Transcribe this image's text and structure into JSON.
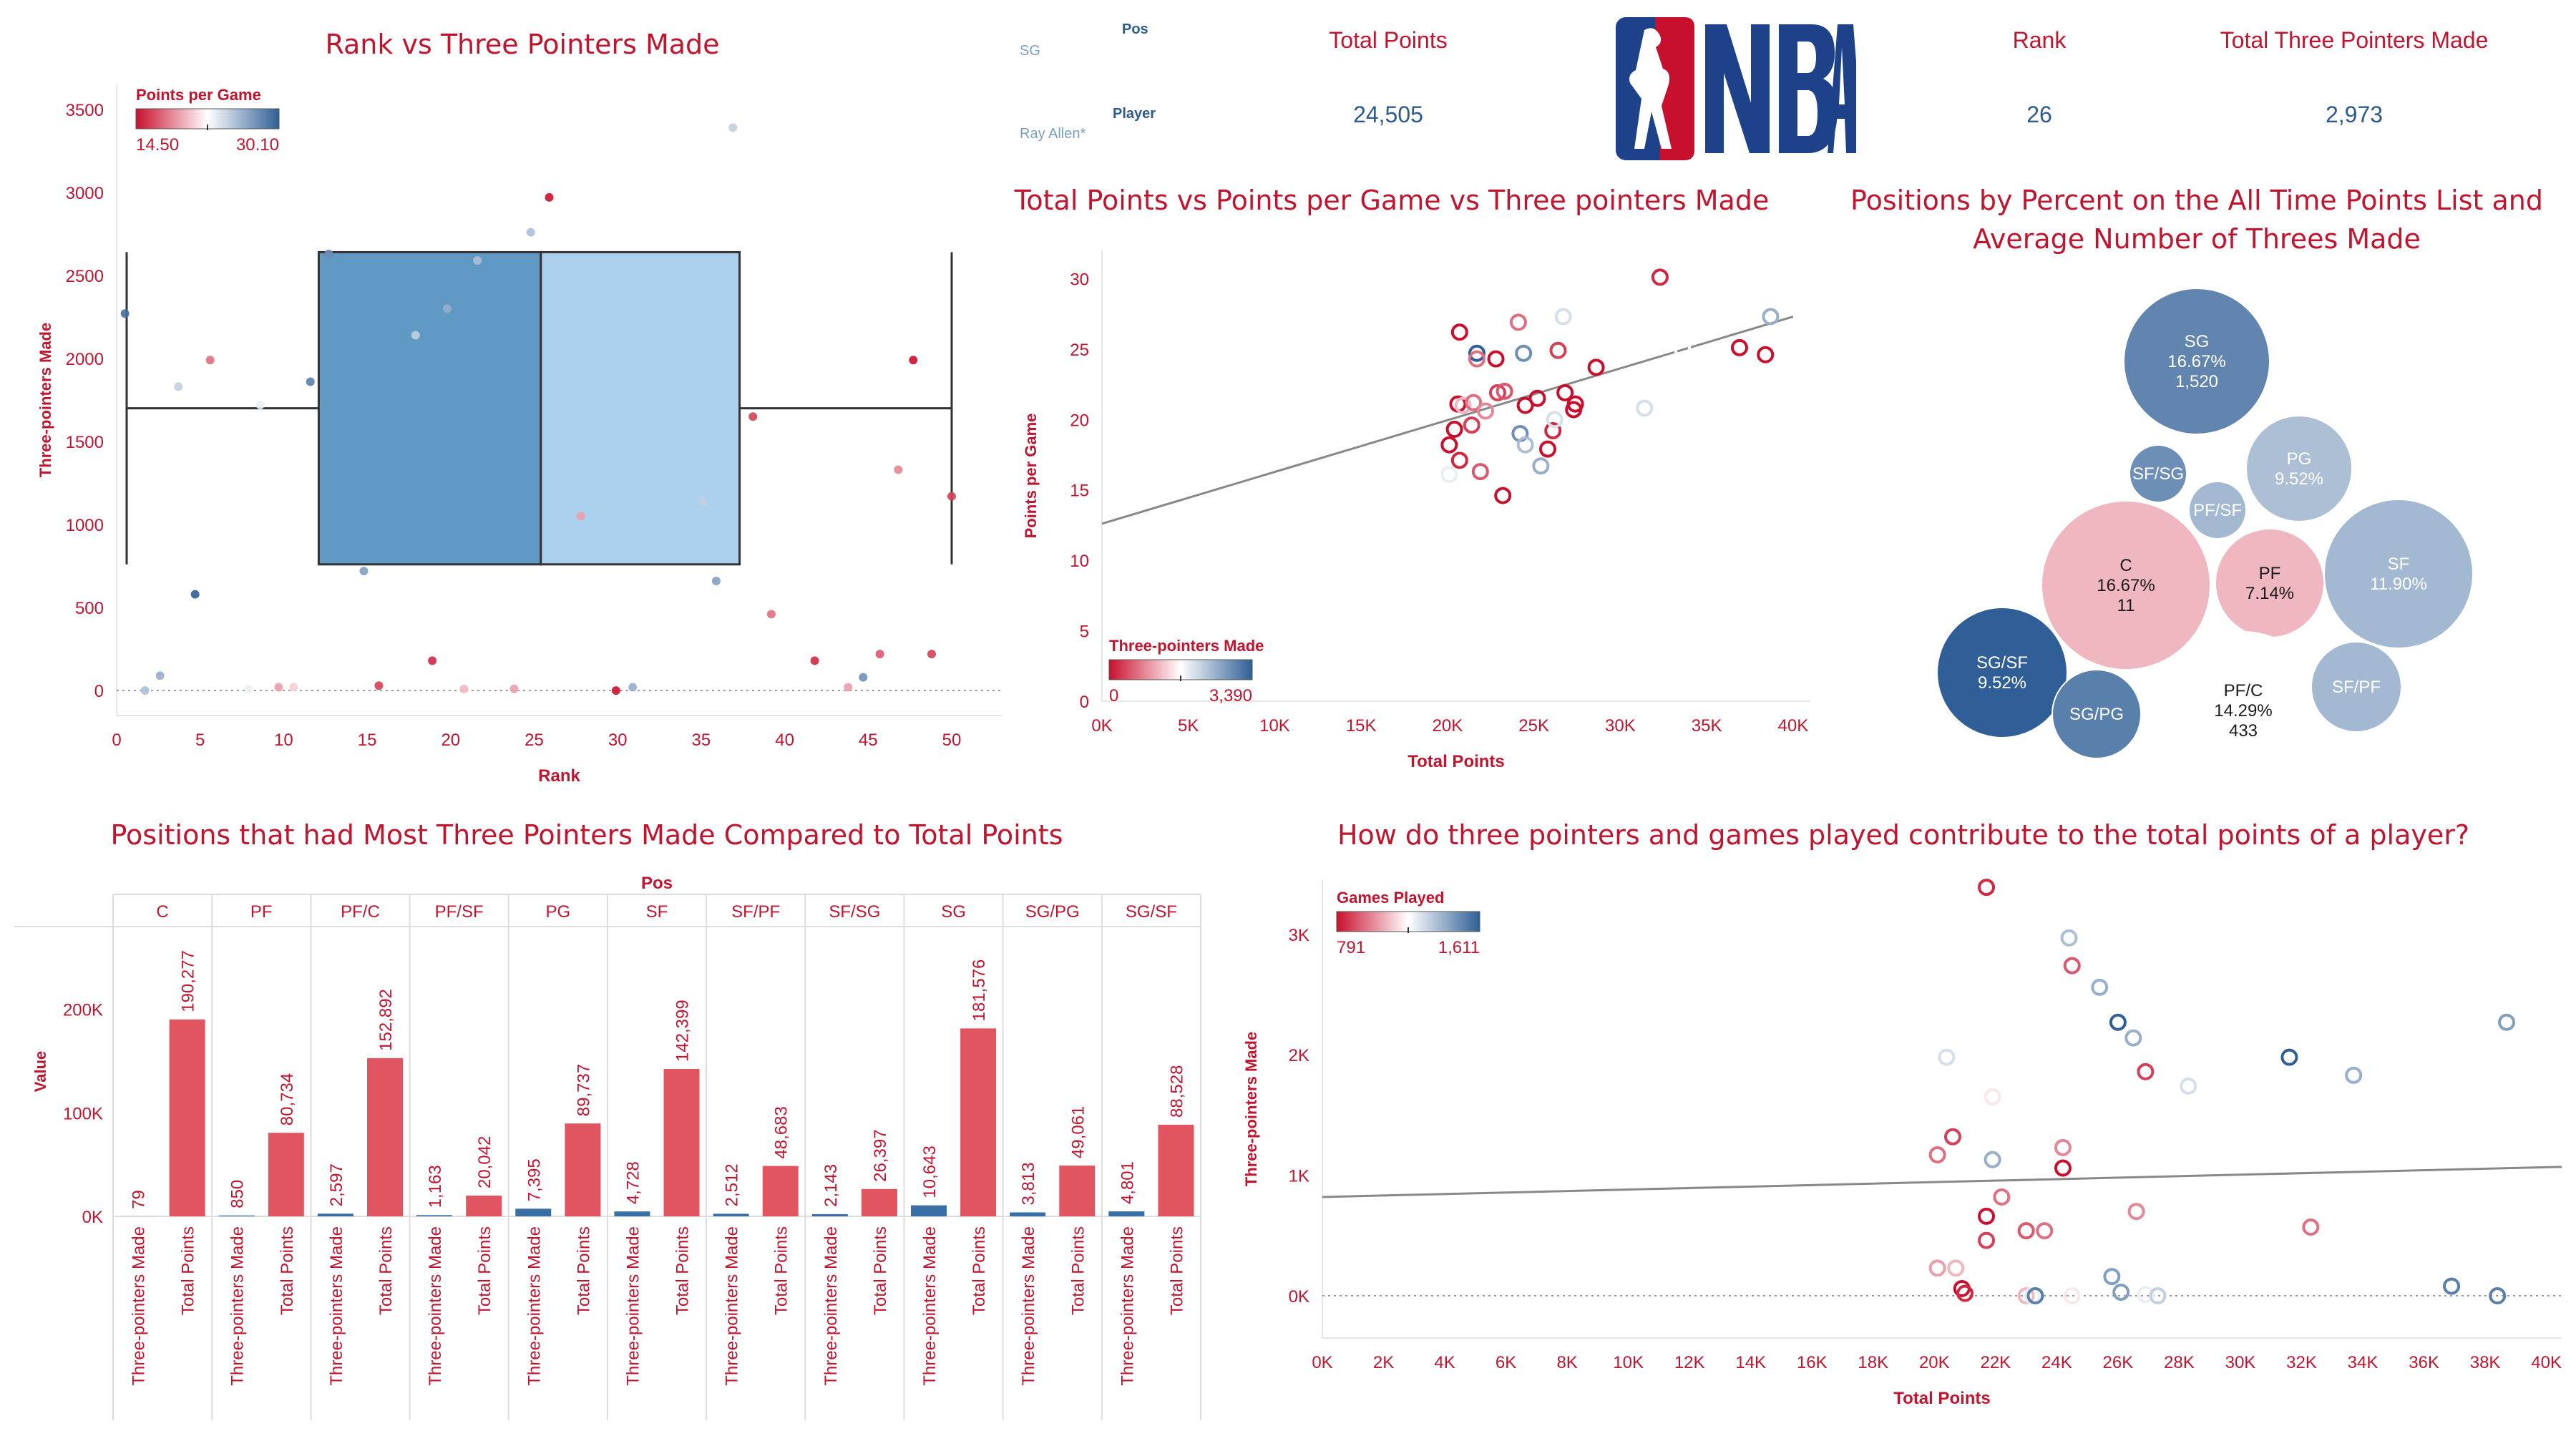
{
  "colors": {
    "title": "#c0152f",
    "axis_label": "#c0152f",
    "tick": "#c0152f",
    "kpi_value": "#2e5b8a",
    "bar_total": "#e05560",
    "bar_three": "#3a6fa5",
    "neg": "#c8102e",
    "mid": "#ffffff",
    "pos": "#2f5f96",
    "nba_blue": "#1d428a",
    "nba_red": "#c8102e"
  },
  "header": {
    "pos_label": "Pos",
    "pos_value": "SG",
    "player_label": "Player",
    "player_value": "Ray Allen*",
    "total_points_label": "Total Points",
    "total_points_value": "24,505",
    "rank_label": "Rank",
    "rank_value": "26",
    "three_label": "Total Three Pointers Made",
    "three_value": "2,973",
    "logo_text": "NBA",
    "logo_icon": "nba-logo"
  },
  "chart_data": [
    {
      "id": "boxplot",
      "type": "scatter",
      "title": "Rank vs Three Pointers Made",
      "xlabel": "Rank",
      "ylabel": "Three-pointers Made",
      "xlim": [
        0,
        53
      ],
      "ylim": [
        -150,
        3650
      ],
      "x_ticks": [
        "0",
        "5",
        "10",
        "15",
        "20",
        "25",
        "30",
        "35",
        "40",
        "45",
        "50"
      ],
      "y_ticks": [
        "0",
        "500",
        "1000",
        "1500",
        "2000",
        "2500",
        "3000",
        "3500"
      ],
      "legend_title": "Points per Game",
      "legend_min": "14.50",
      "legend_max": "30.10",
      "box": {
        "whisker_low": 0,
        "q1": 760,
        "median": 1700,
        "q3": 2640,
        "whisker_high": 2640,
        "x_left": 0.6,
        "x_mid": 25.4,
        "x_right": 37.3,
        "x_end": 50.0
      },
      "points": [
        {
          "x": 0.5,
          "y": 2270,
          "c": 0.95
        },
        {
          "x": 1.7,
          "y": 0,
          "c": 0.7
        },
        {
          "x": 2.6,
          "y": 90,
          "c": 0.75
        },
        {
          "x": 3.7,
          "y": 1830,
          "c": 0.65
        },
        {
          "x": 4.7,
          "y": 580,
          "c": 1.0
        },
        {
          "x": 5.6,
          "y": 1990,
          "c": 0.2
        },
        {
          "x": 7.9,
          "y": 10,
          "c": 0.55
        },
        {
          "x": 8.6,
          "y": 1720,
          "c": 0.55
        },
        {
          "x": 9.7,
          "y": 20,
          "c": 0.3
        },
        {
          "x": 10.6,
          "y": 20,
          "c": 0.4
        },
        {
          "x": 11.6,
          "y": 1860,
          "c": 0.9
        },
        {
          "x": 12.7,
          "y": 2630,
          "c": 0.85
        },
        {
          "x": 14.8,
          "y": 720,
          "c": 0.8
        },
        {
          "x": 15.7,
          "y": 30,
          "c": 0.1
        },
        {
          "x": 17.9,
          "y": 2140,
          "c": 0.65
        },
        {
          "x": 18.9,
          "y": 180,
          "c": 0.05
        },
        {
          "x": 19.8,
          "y": 2300,
          "c": 0.75
        },
        {
          "x": 20.8,
          "y": 10,
          "c": 0.35
        },
        {
          "x": 21.6,
          "y": 2590,
          "c": 0.7
        },
        {
          "x": 23.8,
          "y": 10,
          "c": 0.3
        },
        {
          "x": 24.8,
          "y": 2760,
          "c": 0.7
        },
        {
          "x": 25.9,
          "y": 2970,
          "c": 0.0
        },
        {
          "x": 27.8,
          "y": 1050,
          "c": 0.3
        },
        {
          "x": 29.9,
          "y": 0,
          "c": 0.0
        },
        {
          "x": 30.9,
          "y": 20,
          "c": 0.75
        },
        {
          "x": 32.9,
          "y": 530,
          "c": 0.5
        },
        {
          "x": 35.1,
          "y": 1140,
          "c": 0.65
        },
        {
          "x": 35.9,
          "y": 660,
          "c": 0.8
        },
        {
          "x": 36.9,
          "y": 3390,
          "c": 0.65
        },
        {
          "x": 38.1,
          "y": 1650,
          "c": 0.1
        },
        {
          "x": 39.2,
          "y": 460,
          "c": 0.2
        },
        {
          "x": 41.8,
          "y": 180,
          "c": 0.05
        },
        {
          "x": 43.8,
          "y": 20,
          "c": 0.3
        },
        {
          "x": 44.7,
          "y": 80,
          "c": 0.85
        },
        {
          "x": 45.7,
          "y": 220,
          "c": 0.15
        },
        {
          "x": 46.8,
          "y": 1330,
          "c": 0.25
        },
        {
          "x": 47.7,
          "y": 1990,
          "c": 0.0
        },
        {
          "x": 48.8,
          "y": 220,
          "c": 0.1
        },
        {
          "x": 50.0,
          "y": 1170,
          "c": 0.1
        }
      ]
    },
    {
      "id": "scatter_ppg",
      "type": "scatter",
      "title": "Total Points vs Points per Game vs Three pointers Made",
      "xlabel": "Total Points",
      "ylabel": "Points per Game",
      "xlim": [
        0,
        41000
      ],
      "ylim": [
        0,
        32
      ],
      "x_ticks": [
        "0K",
        "5K",
        "10K",
        "15K",
        "20K",
        "25K",
        "30K",
        "35K",
        "40K"
      ],
      "y_ticks": [
        "0",
        "5",
        "10",
        "15",
        "20",
        "25",
        "30"
      ],
      "legend_title": "Three-pointers Made",
      "legend_min": "0",
      "legend_max": "3,390",
      "trend": [
        [
          0,
          12.6
        ],
        [
          40000,
          27.3
        ]
      ],
      "points": [
        {
          "x": 20100,
          "y": 16.1,
          "c": 0.55
        },
        {
          "x": 20100,
          "y": 18.2,
          "c": 0.0
        },
        {
          "x": 20400,
          "y": 19.3,
          "c": 0.0
        },
        {
          "x": 20600,
          "y": 21.1,
          "c": 0.0
        },
        {
          "x": 20700,
          "y": 26.2,
          "c": 0.0
        },
        {
          "x": 20700,
          "y": 17.1,
          "c": 0.05
        },
        {
          "x": 20900,
          "y": 21.0,
          "c": 0.35
        },
        {
          "x": 21400,
          "y": 19.6,
          "c": 0.1
        },
        {
          "x": 21500,
          "y": 21.2,
          "c": 0.2
        },
        {
          "x": 21700,
          "y": 24.7,
          "c": 1.0
        },
        {
          "x": 21700,
          "y": 24.3,
          "c": 0.2
        },
        {
          "x": 21900,
          "y": 16.3,
          "c": 0.15
        },
        {
          "x": 22200,
          "y": 20.6,
          "c": 0.25
        },
        {
          "x": 22800,
          "y": 24.3,
          "c": 0.0
        },
        {
          "x": 22900,
          "y": 21.9,
          "c": 0.1
        },
        {
          "x": 23200,
          "y": 14.6,
          "c": 0.0
        },
        {
          "x": 23300,
          "y": 22.0,
          "c": 0.15
        },
        {
          "x": 24100,
          "y": 26.9,
          "c": 0.2
        },
        {
          "x": 24200,
          "y": 19.0,
          "c": 0.85
        },
        {
          "x": 24400,
          "y": 24.7,
          "c": 0.85
        },
        {
          "x": 24500,
          "y": 21.0,
          "c": 0.0
        },
        {
          "x": 24500,
          "y": 18.2,
          "c": 0.7
        },
        {
          "x": 25200,
          "y": 21.5,
          "c": 0.0
        },
        {
          "x": 25400,
          "y": 16.7,
          "c": 0.75
        },
        {
          "x": 25800,
          "y": 17.9,
          "c": 0.0
        },
        {
          "x": 26100,
          "y": 19.2,
          "c": 0.05
        },
        {
          "x": 26200,
          "y": 20.0,
          "c": 0.6
        },
        {
          "x": 26400,
          "y": 24.9,
          "c": 0.1
        },
        {
          "x": 26700,
          "y": 27.3,
          "c": 0.6
        },
        {
          "x": 26800,
          "y": 21.9,
          "c": 0.0
        },
        {
          "x": 27300,
          "y": 20.7,
          "c": 0.0
        },
        {
          "x": 27400,
          "y": 21.1,
          "c": 0.0
        },
        {
          "x": 28600,
          "y": 23.7,
          "c": 0.0
        },
        {
          "x": 31400,
          "y": 20.8,
          "c": 0.6
        },
        {
          "x": 32300,
          "y": 30.1,
          "c": 0.05
        },
        {
          "x": 33600,
          "y": 25.0,
          "c": 0.5
        },
        {
          "x": 36900,
          "y": 25.1,
          "c": 0.0
        },
        {
          "x": 38400,
          "y": 24.6,
          "c": 0.0
        },
        {
          "x": 38700,
          "y": 27.3,
          "c": 0.75
        }
      ]
    },
    {
      "id": "bubbles",
      "type": "bubble",
      "title_line1": "Positions by Percent on the All Time Points List and",
      "title_line2": "Average Number of Threes Made",
      "bubbles": [
        {
          "label": "SG",
          "pct": "16.67%",
          "avg": "1,520",
          "c": 0.88
        },
        {
          "label": "SF/SG",
          "pct": "",
          "avg": "",
          "c": 0.85
        },
        {
          "label": "PG",
          "pct": "9.52%",
          "avg": "",
          "c": 0.7
        },
        {
          "label": "PF/SF",
          "pct": "",
          "avg": "",
          "c": 0.72
        },
        {
          "label": "C",
          "pct": "16.67%",
          "avg": "11",
          "c": 0.35
        },
        {
          "label": "PF",
          "pct": "7.14%",
          "avg": "",
          "c": 0.35
        },
        {
          "label": "SF",
          "pct": "11.90%",
          "avg": "",
          "c": 0.72
        },
        {
          "label": "SG/SF",
          "pct": "9.52%",
          "avg": "",
          "c": 1.0
        },
        {
          "label": "SG/PG",
          "pct": "",
          "avg": "",
          "c": 0.9
        },
        {
          "label": "PF/C",
          "pct": "14.29%",
          "avg": "433",
          "c": 0.5
        },
        {
          "label": "SF/PF",
          "pct": "",
          "avg": "",
          "c": 0.72
        }
      ]
    },
    {
      "id": "bars",
      "type": "bar",
      "title": "Positions that had Most Three Pointers Made Compared to Total Points",
      "ylabel": "Value",
      "header_label": "Pos",
      "ylim": [
        0,
        280000
      ],
      "y_ticks": [
        "0K",
        "100K",
        "200K"
      ],
      "measure_three": "Three-pointers Made",
      "measure_total": "Total Points",
      "categories": [
        "C",
        "PF",
        "PF/C",
        "PF/SF",
        "PG",
        "SF",
        "SF/PF",
        "SF/SG",
        "SG",
        "SG/PG",
        "SG/SF"
      ],
      "three_values": [
        79,
        850,
        2597,
        1163,
        7395,
        4728,
        2512,
        2143,
        10643,
        3813,
        4801
      ],
      "total_values": [
        190277,
        80734,
        152892,
        20042,
        89737,
        142399,
        48683,
        26397,
        181576,
        49061,
        88528
      ],
      "three_labels": [
        "79",
        "850",
        "2,597",
        "1,163",
        "7,395",
        "4,728",
        "2,512",
        "2,143",
        "10,643",
        "3,813",
        "4,801"
      ],
      "total_labels": [
        "190,277",
        "80,734",
        "152,892",
        "20,042",
        "89,737",
        "142,399",
        "48,683",
        "26,397",
        "181,576",
        "49,061",
        "88,528"
      ]
    },
    {
      "id": "scatter_games",
      "type": "scatter",
      "title": "How do three pointers and games played contribute to the total points of a player?",
      "xlabel": "Total Points",
      "ylabel": "Three-pointers Made",
      "xlim": [
        0,
        40500
      ],
      "ylim": [
        -350,
        3450
      ],
      "x_ticks": [
        "0K",
        "2K",
        "4K",
        "6K",
        "8K",
        "10K",
        "12K",
        "14K",
        "16K",
        "18K",
        "20K",
        "22K",
        "24K",
        "26K",
        "28K",
        "30K",
        "32K",
        "34K",
        "36K",
        "38K",
        "40K"
      ],
      "y_ticks": [
        "0K",
        "1K",
        "2K",
        "3K"
      ],
      "legend_title": "Games Played",
      "legend_min": "791",
      "legend_max": "1,611",
      "trend": [
        [
          0,
          820
        ],
        [
          40500,
          1070
        ]
      ],
      "points": [
        {
          "x": 21700,
          "y": 3390,
          "c": 0.05
        },
        {
          "x": 24400,
          "y": 2970,
          "c": 0.7
        },
        {
          "x": 24500,
          "y": 2740,
          "c": 0.15
        },
        {
          "x": 25400,
          "y": 2560,
          "c": 0.75
        },
        {
          "x": 26000,
          "y": 2270,
          "c": 1.0
        },
        {
          "x": 26500,
          "y": 2140,
          "c": 0.75
        },
        {
          "x": 26900,
          "y": 1860,
          "c": 0.1
        },
        {
          "x": 28300,
          "y": 1740,
          "c": 0.6
        },
        {
          "x": 31600,
          "y": 1980,
          "c": 1.0
        },
        {
          "x": 33700,
          "y": 1830,
          "c": 0.75
        },
        {
          "x": 38700,
          "y": 2270,
          "c": 0.8
        },
        {
          "x": 20400,
          "y": 1980,
          "c": 0.6
        },
        {
          "x": 20600,
          "y": 1320,
          "c": 0.1
        },
        {
          "x": 20100,
          "y": 1170,
          "c": 0.2
        },
        {
          "x": 21900,
          "y": 1650,
          "c": 0.45
        },
        {
          "x": 21900,
          "y": 1130,
          "c": 0.75
        },
        {
          "x": 24200,
          "y": 1230,
          "c": 0.25
        },
        {
          "x": 24200,
          "y": 1060,
          "c": 0.0
        },
        {
          "x": 21700,
          "y": 660,
          "c": 0.0
        },
        {
          "x": 22200,
          "y": 820,
          "c": 0.2
        },
        {
          "x": 21700,
          "y": 460,
          "c": 0.1
        },
        {
          "x": 23000,
          "y": 540,
          "c": 0.15
        },
        {
          "x": 23600,
          "y": 540,
          "c": 0.2
        },
        {
          "x": 26600,
          "y": 700,
          "c": 0.25
        },
        {
          "x": 32300,
          "y": 570,
          "c": 0.2
        },
        {
          "x": 20100,
          "y": 230,
          "c": 0.3
        },
        {
          "x": 20700,
          "y": 230,
          "c": 0.35
        },
        {
          "x": 20900,
          "y": 60,
          "c": 0.0
        },
        {
          "x": 21000,
          "y": 20,
          "c": 0.05
        },
        {
          "x": 23000,
          "y": 0,
          "c": 0.35
        },
        {
          "x": 23200,
          "y": 0,
          "c": 0.55
        },
        {
          "x": 23300,
          "y": 0,
          "c": 0.9
        },
        {
          "x": 24500,
          "y": 0,
          "c": 0.45
        },
        {
          "x": 25800,
          "y": 160,
          "c": 0.8
        },
        {
          "x": 26100,
          "y": 30,
          "c": 0.8
        },
        {
          "x": 26900,
          "y": 10,
          "c": 0.55
        },
        {
          "x": 27300,
          "y": 0,
          "c": 0.65
        },
        {
          "x": 36900,
          "y": 80,
          "c": 0.9
        },
        {
          "x": 38400,
          "y": 0,
          "c": 0.9
        }
      ]
    }
  ]
}
